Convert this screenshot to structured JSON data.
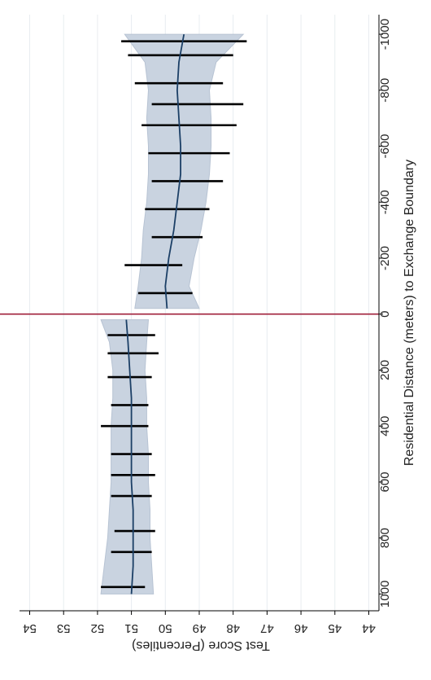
{
  "chart_data": {
    "type": "line",
    "orientation": "rotated-90-clockwise",
    "xlabel": "Residential Distance (meters) to Exchange Boundary",
    "ylabel": "Test Score (Percentiles)",
    "x_ticks": [
      "-1000",
      "-800",
      "-600",
      "-400",
      "-200",
      "0",
      "200",
      "400",
      "600",
      "800",
      "1000"
    ],
    "x_tick_values": [
      -1000,
      -800,
      -600,
      -400,
      -200,
      0,
      200,
      400,
      600,
      800,
      1000
    ],
    "y_ticks": [
      "44",
      "45",
      "46",
      "47",
      "48",
      "49",
      "50",
      "51",
      "52",
      "53",
      "54"
    ],
    "y_tick_values": [
      44,
      45,
      46,
      47,
      48,
      49,
      50,
      51,
      52,
      53,
      54
    ],
    "xlim": [
      -1070,
      1060
    ],
    "ylim": [
      43.7,
      54.3
    ],
    "grid": true,
    "cutoff_x": 0,
    "colors": {
      "fit_line": "#1b3f66",
      "ci_band": "#c9d3e0",
      "ci_edge": "#b7c3d3",
      "bin_bars": "#000000",
      "cutoff_line": "#a0203a",
      "grid": "#e8ecf0"
    },
    "series": [
      {
        "segment": "left",
        "x": [
          -1000,
          -900,
          -800,
          -700,
          -600,
          -500,
          -400,
          -300,
          -200,
          -100,
          -20
        ],
        "fit": [
          49.45,
          49.6,
          49.65,
          49.6,
          49.55,
          49.55,
          49.65,
          49.75,
          49.9,
          50.0,
          49.95
        ],
        "ci_lower": [
          47.7,
          48.5,
          48.7,
          48.65,
          48.65,
          48.7,
          48.8,
          48.95,
          49.15,
          49.3,
          49.0
        ],
        "ci_upper": [
          51.2,
          50.6,
          50.5,
          50.55,
          50.5,
          50.5,
          50.55,
          50.65,
          50.7,
          50.8,
          50.9
        ]
      },
      {
        "segment": "right",
        "x": [
          20,
          100,
          200,
          300,
          400,
          500,
          600,
          700,
          800,
          900,
          1000
        ],
        "fit": [
          51.15,
          51.1,
          51.05,
          51.0,
          51.0,
          51.0,
          51.0,
          50.95,
          50.95,
          50.95,
          51.0
        ],
        "ci_lower": [
          50.5,
          50.55,
          50.6,
          50.55,
          50.55,
          50.5,
          50.5,
          50.45,
          50.45,
          50.4,
          50.35
        ],
        "ci_upper": [
          51.9,
          51.65,
          51.55,
          51.55,
          51.6,
          51.6,
          51.6,
          51.65,
          51.7,
          51.8,
          51.9
        ]
      }
    ],
    "binned_intervals": [
      {
        "x": -975,
        "low": 47.6,
        "high": 51.3
      },
      {
        "x": -925,
        "low": 48.0,
        "high": 51.1
      },
      {
        "x": -825,
        "low": 48.3,
        "high": 50.9
      },
      {
        "x": -750,
        "low": 47.7,
        "high": 50.4
      },
      {
        "x": -675,
        "low": 47.9,
        "high": 50.7
      },
      {
        "x": -575,
        "low": 48.1,
        "high": 50.5
      },
      {
        "x": -475,
        "low": 48.3,
        "high": 50.4
      },
      {
        "x": -375,
        "low": 48.7,
        "high": 50.6
      },
      {
        "x": -275,
        "low": 48.9,
        "high": 50.4
      },
      {
        "x": -175,
        "low": 49.5,
        "high": 51.2
      },
      {
        "x": -75,
        "low": 49.2,
        "high": 50.8
      },
      {
        "x": 75,
        "low": 50.3,
        "high": 51.7
      },
      {
        "x": 140,
        "low": 50.2,
        "high": 51.7
      },
      {
        "x": 225,
        "low": 50.4,
        "high": 51.7
      },
      {
        "x": 325,
        "low": 50.5,
        "high": 51.6
      },
      {
        "x": 400,
        "low": 50.5,
        "high": 51.9
      },
      {
        "x": 500,
        "low": 50.4,
        "high": 51.6
      },
      {
        "x": 575,
        "low": 50.3,
        "high": 51.6
      },
      {
        "x": 650,
        "low": 50.4,
        "high": 51.6
      },
      {
        "x": 775,
        "low": 50.3,
        "high": 51.5
      },
      {
        "x": 850,
        "low": 50.4,
        "high": 51.6
      },
      {
        "x": 975,
        "low": 50.6,
        "high": 51.9
      }
    ]
  }
}
